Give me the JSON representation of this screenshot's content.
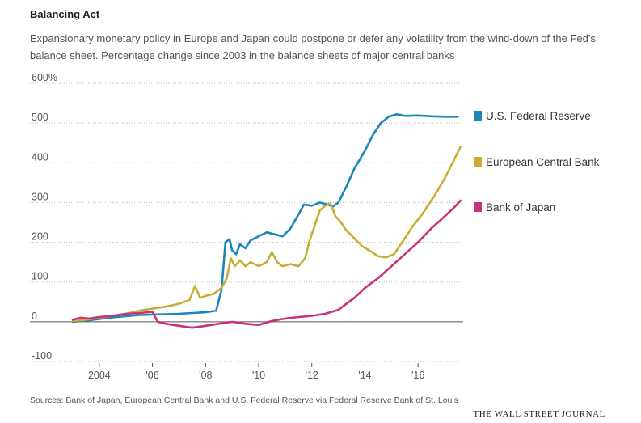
{
  "header": {
    "title": "Balancing Act",
    "subtitle": "Expansionary monetary policy in Europe and Japan could postpone or defer any volatility from the wind-down of the Fed's balance sheet. Percentage change since 2003 in the balance sheets of major central banks"
  },
  "footer": {
    "source": "Sources: Bank of Japan, European Central Bank and U.S. Federal Reserve via Federal Reserve Bank of St. Louis",
    "brand": "THE WALL STREET JOURNAL"
  },
  "chart_data": {
    "type": "line",
    "xlim": [
      2003,
      2017.7
    ],
    "ylim": [
      -100,
      600
    ],
    "grid": true,
    "legend_position": "right",
    "x_ticks": [
      {
        "value": 2004,
        "label": "2004"
      },
      {
        "value": 2006,
        "label": "'06"
      },
      {
        "value": 2008,
        "label": "'08"
      },
      {
        "value": 2010,
        "label": "'10"
      },
      {
        "value": 2012,
        "label": "'12"
      },
      {
        "value": 2014,
        "label": "'14"
      },
      {
        "value": 2016,
        "label": "'16"
      }
    ],
    "y_ticks": [
      {
        "value": 600,
        "label": "600%"
      },
      {
        "value": 500,
        "label": "500"
      },
      {
        "value": 400,
        "label": "400"
      },
      {
        "value": 300,
        "label": "300"
      },
      {
        "value": 200,
        "label": "200"
      },
      {
        "value": 100,
        "label": "100"
      },
      {
        "value": 0,
        "label": "0"
      },
      {
        "value": -100,
        "label": "-100"
      }
    ],
    "series": [
      {
        "name": "U.S. Federal Reserve",
        "color": "#1a87b8",
        "x": [
          2003.0,
          2003.5,
          2004.0,
          2004.5,
          2005.0,
          2005.5,
          2006.0,
          2006.5,
          2007.0,
          2007.5,
          2008.0,
          2008.4,
          2008.6,
          2008.75,
          2008.9,
          2009.0,
          2009.15,
          2009.3,
          2009.5,
          2009.7,
          2010.0,
          2010.3,
          2010.6,
          2010.9,
          2011.2,
          2011.5,
          2011.7,
          2012.0,
          2012.3,
          2012.6,
          2012.8,
          2013.0,
          2013.3,
          2013.6,
          2014.0,
          2014.3,
          2014.6,
          2014.9,
          2015.2,
          2015.5,
          2016.0,
          2016.5,
          2017.0,
          2017.5
        ],
        "y": [
          0,
          3,
          7,
          11,
          14,
          17,
          18,
          19,
          20,
          22,
          24,
          28,
          80,
          200,
          208,
          180,
          170,
          195,
          185,
          205,
          215,
          225,
          220,
          215,
          235,
          270,
          295,
          292,
          300,
          295,
          290,
          300,
          340,
          385,
          430,
          470,
          500,
          516,
          522,
          518,
          519,
          517,
          516,
          516
        ]
      },
      {
        "name": "European Central Bank",
        "color": "#c8ad35",
        "x": [
          2003.0,
          2003.5,
          2004.0,
          2004.5,
          2005.0,
          2005.5,
          2006.0,
          2006.5,
          2007.0,
          2007.4,
          2007.6,
          2007.8,
          2008.0,
          2008.3,
          2008.6,
          2008.8,
          2008.95,
          2009.1,
          2009.3,
          2009.5,
          2009.7,
          2010.0,
          2010.3,
          2010.5,
          2010.7,
          2010.9,
          2011.2,
          2011.5,
          2011.75,
          2011.9,
          2012.1,
          2012.3,
          2012.5,
          2012.7,
          2012.9,
          2013.1,
          2013.3,
          2013.6,
          2013.9,
          2014.2,
          2014.5,
          2014.8,
          2015.1,
          2015.4,
          2015.8,
          2016.2,
          2016.6,
          2017.0,
          2017.3,
          2017.6
        ],
        "y": [
          2,
          5,
          10,
          15,
          20,
          28,
          33,
          38,
          45,
          55,
          90,
          60,
          65,
          70,
          85,
          110,
          160,
          140,
          155,
          140,
          150,
          140,
          150,
          175,
          150,
          140,
          145,
          140,
          160,
          200,
          240,
          280,
          292,
          298,
          265,
          250,
          230,
          210,
          190,
          178,
          165,
          162,
          170,
          200,
          240,
          275,
          315,
          360,
          400,
          440
        ]
      },
      {
        "name": "Bank of Japan",
        "color": "#c8327a",
        "x": [
          2003.0,
          2003.3,
          2003.6,
          2004.0,
          2004.5,
          2005.0,
          2005.5,
          2006.0,
          2006.2,
          2006.5,
          2007.0,
          2007.5,
          2008.0,
          2008.5,
          2009.0,
          2009.5,
          2010.0,
          2010.5,
          2011.0,
          2011.5,
          2012.0,
          2012.5,
          2013.0,
          2013.3,
          2013.6,
          2014.0,
          2014.5,
          2015.0,
          2015.5,
          2016.0,
          2016.5,
          2017.0,
          2017.4,
          2017.6
        ],
        "y": [
          5,
          10,
          8,
          12,
          15,
          20,
          22,
          25,
          0,
          -5,
          -10,
          -15,
          -10,
          -5,
          0,
          -5,
          -8,
          2,
          8,
          12,
          15,
          20,
          30,
          45,
          60,
          85,
          110,
          140,
          170,
          200,
          235,
          265,
          290,
          305
        ]
      }
    ]
  }
}
